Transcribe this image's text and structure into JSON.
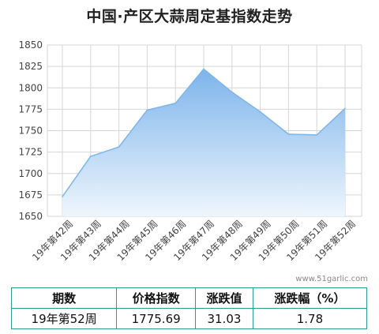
{
  "chart_data": {
    "type": "area",
    "title": "中国·产区大蒜周定基指数走势",
    "xlabel": "",
    "ylabel": "",
    "categories": [
      "19年第42周",
      "19年第43周",
      "19年第44周",
      "19年第45周",
      "19年第46周",
      "19年第47周",
      "19年第48周",
      "19年第49周",
      "19年第50周",
      "19年第51周",
      "19年第52周"
    ],
    "values": [
      1673,
      1720,
      1731,
      1774,
      1782,
      1822,
      1795,
      1772,
      1746,
      1745,
      1776
    ],
    "ylim": [
      1650,
      1850
    ],
    "yticks": [
      1650,
      1675,
      1700,
      1725,
      1750,
      1775,
      1800,
      1825,
      1850
    ],
    "grid": true,
    "colors": {
      "line": "#7eb6ea",
      "fill_top": "#7db4ea",
      "fill_bottom": "#eef6fd",
      "grid": "#d6d6d6",
      "table_border": "#2a9d8f"
    }
  },
  "watermark": "www.51garlic.com",
  "summary_table": {
    "headers": [
      "期数",
      "价格指数",
      "涨跌值",
      "涨跌幅（%）"
    ],
    "row": [
      "19年第52周",
      "1775.69",
      "31.03",
      "1.78"
    ]
  }
}
